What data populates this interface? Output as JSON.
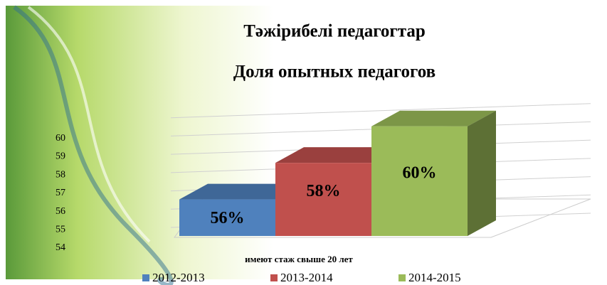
{
  "chart_data": {
    "type": "bar3d",
    "title": "Тәжірибелі педагогтар",
    "subtitle": "Доля опытных педагогов",
    "categories": [
      "имеют стаж свыше 20 лет"
    ],
    "series": [
      {
        "name": "2012-2013",
        "color": "#4f81bd",
        "values": [
          56
        ],
        "value_labels": [
          "56%"
        ]
      },
      {
        "name": "2013-2014",
        "color": "#c0504d",
        "values": [
          58
        ],
        "value_labels": [
          "58%"
        ]
      },
      {
        "name": "2014-2015",
        "color": "#9bbb59",
        "values": [
          60
        ],
        "value_labels": [
          "60%"
        ]
      }
    ],
    "ylim": [
      54,
      61
    ],
    "yticks": [
      54,
      55,
      56,
      57,
      58,
      59,
      60
    ],
    "grid": true,
    "legend": "bottom"
  }
}
